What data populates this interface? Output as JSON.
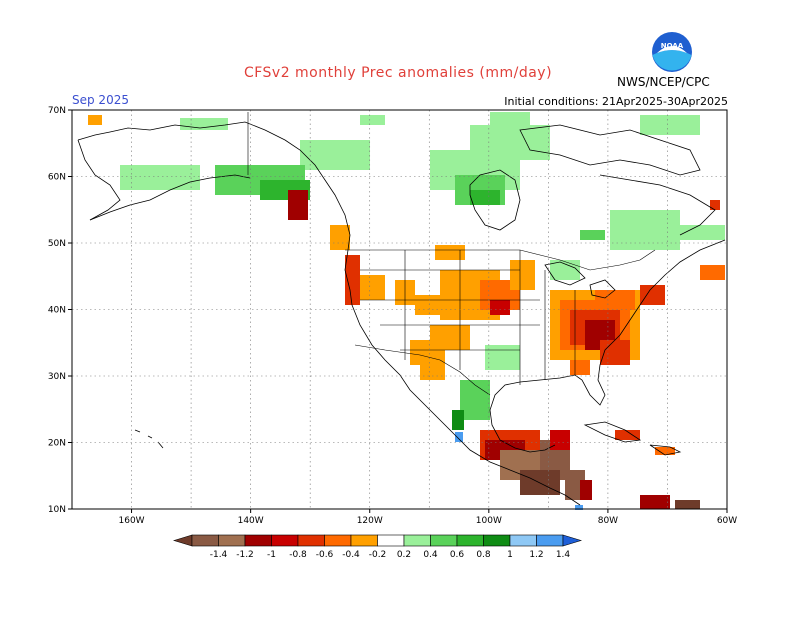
{
  "header": {
    "title": "CFSv2 monthly Prec anomalies (mm/day)",
    "valid_month": "Sep 2025",
    "initial_conditions": "Initial conditions: 21Apr2025-30Apr2025",
    "agency": "NWS/NCEP/CPC",
    "logo_text": "NOAA"
  },
  "map": {
    "lon_range": [
      -170,
      -60
    ],
    "lat_range": [
      10,
      70
    ],
    "lon_ticks": [
      "160W",
      "140W",
      "120W",
      "100W",
      "80W",
      "60W"
    ],
    "lat_ticks": [
      "70N",
      "60N",
      "50N",
      "40N",
      "30N",
      "20N",
      "10N"
    ],
    "grid": true
  },
  "colorbar": {
    "labels": [
      "-1.4",
      "-1.2",
      "-1",
      "-0.8",
      "-0.6",
      "-0.4",
      "-0.2",
      "0.2",
      "0.4",
      "0.6",
      "0.8",
      "1",
      "1.2",
      "1.4"
    ],
    "colors": {
      "below_min": "#6e3b2a",
      "neg_1_4": "#8a5a44",
      "neg_1_2": "#a07050",
      "neg_1_0": "#a00000",
      "neg_0_8": "#c80000",
      "neg_0_6": "#e03000",
      "neg_0_4": "#ff6a00",
      "neg_0_2": "#ffa000",
      "neutral": "#ffffff",
      "pos_0_2": "#9af09a",
      "pos_0_4": "#5ad25a",
      "pos_0_6": "#2db42d",
      "pos_0_8": "#0f8c14",
      "pos_1_0": "#8ec8f5",
      "pos_1_2": "#4a9cf0",
      "above_max": "#1e5fd8"
    }
  }
}
